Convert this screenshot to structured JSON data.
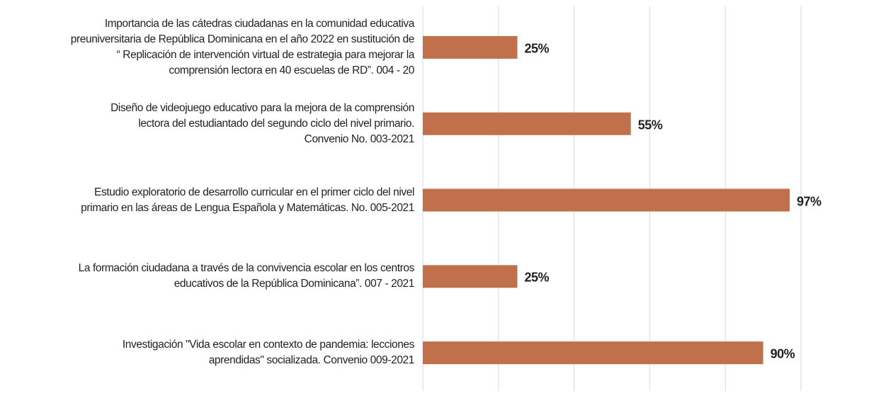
{
  "chart_data": {
    "type": "barh",
    "categories": [
      "Importancia de las cátedras ciudadanas en la comunidad educativa\npreuniversitaria de República Dominicana en el año 2022 en sustitución de\n“ Replicación de intervención virtual de estrategia para mejorar la\ncomprensión lectora en 40 escuelas de RD”. 004 - 20",
      "Diseño de videojuego educativo para la mejora de la comprensión\nlectora del estudiantado del segundo ciclo del nivel primario.\nConvenio No. 003-2021",
      "Estudio exploratorio de desarrollo curricular en el primer ciclo del nivel\nprimario en las áreas de Lengua Española y Matemáticas. No. 005-2021",
      "La formación ciudadana a través de la convivencia escolar en los centros\neducativos de la República Dominicana”. 007 - 2021",
      "Investigación \"Vida escolar en contexto de pandemia: lecciones\naprendidas\" socializada. Convenio 009-2021"
    ],
    "values": [
      25,
      55,
      97,
      25,
      90
    ],
    "value_labels": [
      "25%",
      "55%",
      "97%",
      "25%",
      "90%"
    ],
    "color": "#c0704a",
    "xlim": [
      0,
      100
    ],
    "xticks": [
      0,
      20,
      40,
      60,
      80,
      100
    ],
    "grid": true
  }
}
